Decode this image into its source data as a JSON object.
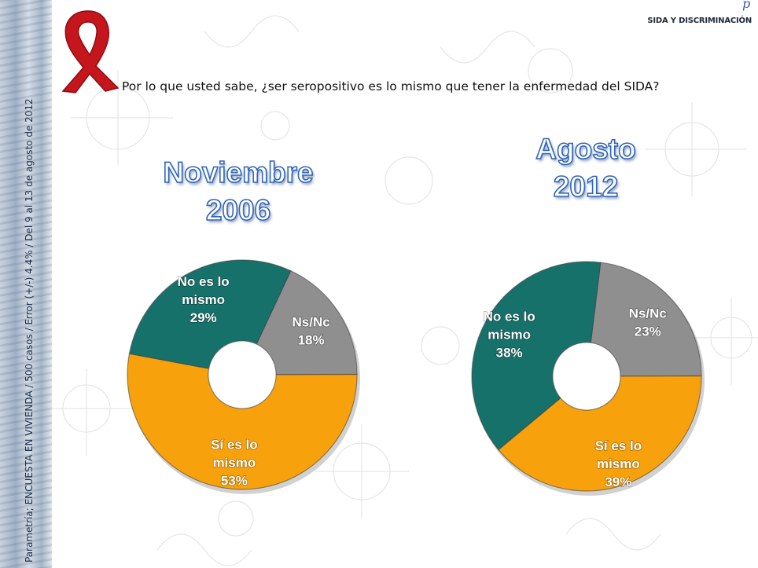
{
  "header": {
    "section_label": "SIDA Y DISCRIMINACIÓN",
    "logo_mark": "p",
    "question": "Por lo que usted sabe, ¿ser seropositivo es lo mismo que tener la enfermedad del SIDA?"
  },
  "sidebar": {
    "note": "Parametría; ENCUESTA EN VIVIENDA / 500 casos / Error (+/-) 4.4% / Del 9 al 13 de agosto de 2012"
  },
  "periods": {
    "p1": {
      "line1": "Noviembre",
      "line2": "2006"
    },
    "p2": {
      "line1": "Agosto",
      "line2": "2012"
    }
  },
  "colors": {
    "si_es_lo_mismo": "#f7a10c",
    "no_es_lo_mismo": "#17716b",
    "ns_nc": "#8f8f8f",
    "title_outline": "#2f66b8",
    "ribbon": "#c4161c"
  },
  "chart_data": [
    {
      "type": "pie",
      "variant": "donut",
      "title": "Noviembre 2006",
      "slices": [
        {
          "name": "Ns/Nc",
          "value": 18,
          "label": "18%",
          "color": "#8f8f8f",
          "label_lines": [
            "Ns/Nc",
            "18%"
          ]
        },
        {
          "name": "Sí es lo mismo",
          "value": 53,
          "label": "53%",
          "color": "#f7a10c",
          "label_lines": [
            "Sí es lo",
            "mismo",
            "53%"
          ]
        },
        {
          "name": "No es lo mismo",
          "value": 29,
          "label": "29%",
          "color": "#17716b",
          "label_lines": [
            "No es lo",
            "mismo",
            "29%"
          ]
        }
      ]
    },
    {
      "type": "pie",
      "variant": "donut",
      "title": "Agosto 2012",
      "slices": [
        {
          "name": "Ns/Nc",
          "value": 23,
          "label": "23%",
          "color": "#8f8f8f",
          "label_lines": [
            "Ns/Nc",
            "23%"
          ]
        },
        {
          "name": "Sí es lo mismo",
          "value": 39,
          "label": "39%",
          "color": "#f7a10c",
          "label_lines": [
            "Sí es lo",
            "mismo",
            "39%"
          ]
        },
        {
          "name": "No es lo mismo",
          "value": 38,
          "label": "38%",
          "color": "#17716b",
          "label_lines": [
            "No es lo",
            "mismo",
            "38%"
          ]
        }
      ]
    }
  ]
}
